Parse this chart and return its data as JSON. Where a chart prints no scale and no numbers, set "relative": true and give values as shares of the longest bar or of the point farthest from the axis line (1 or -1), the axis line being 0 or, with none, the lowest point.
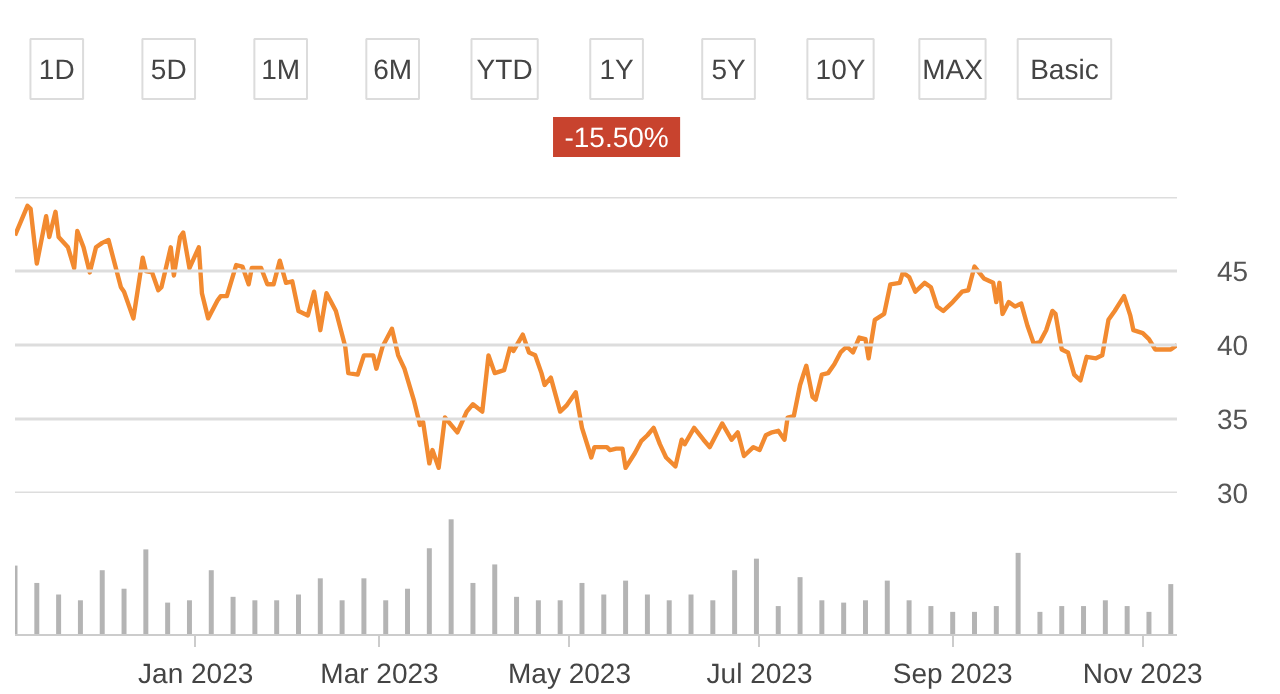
{
  "chart_data": [
    {
      "type": "line",
      "annotations": [
        "1D",
        "5D",
        "1M",
        "6M",
        "YTD",
        "1Y",
        "5Y",
        "10Y",
        "MAX",
        "Basic",
        "-15.50%"
      ],
      "xlim": [
        "2022-11-04",
        "2023-11-12"
      ],
      "ylim": [
        30,
        50
      ],
      "yticks": [
        30,
        35,
        40,
        45,
        {
          "value": 50,
          "label": null
        }
      ],
      "grid": "y",
      "tick_labels": "y",
      "line_style": "solid",
      "series": [
        {
          "color": "#f28a30",
          "x": [
            "2022-11-04",
            "2022-11-08",
            "2022-11-09",
            "2022-11-11",
            "2022-11-14",
            "2022-11-15",
            "2022-11-17",
            "2022-11-18",
            "2022-11-21",
            "2022-11-23",
            "2022-11-24",
            "2022-11-26",
            "2022-11-28",
            "2022-11-30",
            "2022-12-02",
            "2022-12-04",
            "2022-12-08",
            "2022-12-09",
            "2022-12-12",
            "2022-12-15",
            "2022-12-16",
            "2022-12-18",
            "2022-12-20",
            "2022-12-21",
            "2022-12-24",
            "2022-12-25",
            "2022-12-27",
            "2022-12-28",
            "2022-12-30",
            "2023-01-02",
            "2023-01-03",
            "2023-01-05",
            "2023-01-08",
            "2023-01-09",
            "2023-01-11",
            "2023-01-14",
            "2023-01-16",
            "2023-01-18",
            "2023-01-19",
            "2023-01-22",
            "2023-01-24",
            "2023-01-26",
            "2023-01-28",
            "2023-01-30",
            "2023-02-01",
            "2023-02-03",
            "2023-02-06",
            "2023-02-08",
            "2023-02-10",
            "2023-02-12",
            "2023-02-15",
            "2023-02-18",
            "2023-02-19",
            "2023-02-22",
            "2023-02-24",
            "2023-02-27",
            "2023-02-28",
            "2023-03-02",
            "2023-03-05",
            "2023-03-07",
            "2023-03-09",
            "2023-03-12",
            "2023-03-14",
            "2023-03-15",
            "2023-03-17",
            "2023-03-18",
            "2023-03-20",
            "2023-03-22",
            "2023-03-26",
            "2023-03-29",
            "2023-03-31",
            "2023-04-03",
            "2023-04-05",
            "2023-04-07",
            "2023-04-10",
            "2023-04-12",
            "2023-04-13",
            "2023-04-16",
            "2023-04-18",
            "2023-04-20",
            "2023-04-22",
            "2023-04-23",
            "2023-04-25",
            "2023-04-28",
            "2023-04-30",
            "2023-05-03",
            "2023-05-05",
            "2023-05-08",
            "2023-05-09",
            "2023-05-13",
            "2023-05-14",
            "2023-05-16",
            "2023-05-18",
            "2023-05-19",
            "2023-05-22",
            "2023-05-24",
            "2023-05-26",
            "2023-05-28",
            "2023-05-30",
            "2023-06-01",
            "2023-06-04",
            "2023-06-06",
            "2023-06-07",
            "2023-06-10",
            "2023-06-13",
            "2023-06-15",
            "2023-06-17",
            "2023-06-19",
            "2023-06-22",
            "2023-06-24",
            "2023-06-26",
            "2023-06-29",
            "2023-07-01",
            "2023-07-03",
            "2023-07-05",
            "2023-07-07",
            "2023-07-09",
            "2023-07-10",
            "2023-07-12",
            "2023-07-14",
            "2023-07-16",
            "2023-07-18",
            "2023-07-19",
            "2023-07-21",
            "2023-07-23",
            "2023-07-25",
            "2023-07-27",
            "2023-07-29",
            "2023-07-31",
            "2023-08-02",
            "2023-08-04",
            "2023-08-05",
            "2023-08-07",
            "2023-08-10",
            "2023-08-12",
            "2023-08-15",
            "2023-08-16",
            "2023-08-18",
            "2023-08-20",
            "2023-08-23",
            "2023-08-25",
            "2023-08-27",
            "2023-08-29",
            "2023-09-01",
            "2023-09-04",
            "2023-09-06",
            "2023-09-08",
            "2023-09-11",
            "2023-09-14",
            "2023-09-15",
            "2023-09-16",
            "2023-09-17",
            "2023-09-19",
            "2023-09-21",
            "2023-09-23",
            "2023-09-25",
            "2023-09-27",
            "2023-09-29",
            "2023-10-01",
            "2023-10-03",
            "2023-10-04",
            "2023-10-06",
            "2023-10-08",
            "2023-10-10",
            "2023-10-12",
            "2023-10-14",
            "2023-10-17",
            "2023-10-19",
            "2023-10-21",
            "2023-10-23",
            "2023-10-26",
            "2023-10-28",
            "2023-10-29",
            "2023-11-01",
            "2023-11-03",
            "2023-11-05",
            "2023-11-08",
            "2023-11-10",
            "2023-11-12"
          ],
          "values": [
            47.4,
            49.4,
            49.2,
            45.5,
            48.7,
            47.3,
            49.0,
            47.3,
            46.6,
            45.2,
            47.7,
            46.6,
            44.9,
            46.6,
            46.9,
            47.1,
            43.9,
            43.6,
            41.8,
            45.9,
            45.0,
            44.9,
            43.7,
            43.9,
            46.6,
            44.7,
            47.3,
            47.6,
            45.2,
            46.6,
            43.5,
            41.8,
            43.0,
            43.3,
            43.3,
            45.4,
            45.3,
            44.1,
            45.2,
            45.2,
            44.1,
            44.1,
            45.7,
            44.2,
            44.3,
            42.3,
            42.0,
            43.6,
            41.0,
            43.5,
            42.3,
            39.9,
            38.1,
            38.0,
            39.3,
            39.3,
            38.4,
            39.9,
            41.1,
            39.3,
            38.4,
            36.3,
            34.6,
            34.8,
            32.0,
            32.9,
            31.7,
            35.1,
            34.1,
            35.5,
            36.0,
            35.5,
            39.3,
            38.1,
            38.3,
            39.9,
            39.6,
            40.7,
            39.5,
            39.3,
            38.1,
            37.3,
            37.8,
            35.5,
            35.9,
            36.8,
            34.4,
            32.4,
            33.1,
            33.1,
            32.9,
            33.0,
            33.0,
            31.7,
            32.7,
            33.5,
            33.9,
            34.4,
            33.3,
            32.4,
            31.8,
            33.6,
            33.3,
            34.4,
            33.6,
            33.1,
            33.9,
            34.7,
            33.6,
            34.1,
            32.5,
            33.1,
            32.9,
            33.9,
            34.1,
            34.2,
            33.6,
            35.1,
            35.2,
            37.3,
            38.6,
            36.5,
            36.3,
            38.0,
            38.1,
            38.7,
            39.5,
            39.9,
            39.5,
            40.5,
            40.4,
            39.1,
            41.7,
            42.1,
            44.1,
            44.2,
            44.9,
            44.6,
            43.6,
            44.2,
            43.9,
            42.6,
            42.3,
            42.9,
            43.6,
            43.7,
            45.3,
            44.5,
            44.2,
            42.9,
            44.2,
            42.1,
            42.9,
            42.6,
            42.8,
            41.3,
            40.1,
            40.2,
            41.0,
            42.3,
            42.1,
            39.7,
            39.5,
            38.0,
            37.6,
            39.2,
            39.1,
            39.3,
            41.7,
            42.3,
            43.3,
            42.0,
            41.0,
            40.8,
            40.4,
            39.7,
            39.7,
            39.7,
            40.0
          ]
        }
      ]
    },
    {
      "type": "bar",
      "relative": true,
      "tick_labels": "x",
      "color": "#b4b4b4",
      "xlim": [
        "2022-11-04",
        "2023-11-12"
      ],
      "xticks": [
        {
          "value": "2023-01-01",
          "label": "Jan 2023"
        },
        {
          "value": "2023-03-01",
          "label": "Mar 2023"
        },
        {
          "value": "2023-05-01",
          "label": "May 2023"
        },
        {
          "value": "2023-07-01",
          "label": "Jul 2023"
        },
        {
          "value": "2023-09-01",
          "label": "Sep 2023"
        },
        {
          "value": "2023-11-01",
          "label": "Nov 2023"
        }
      ],
      "x": [
        "2022-11-04",
        "2022-11-11",
        "2022-11-18",
        "2022-11-25",
        "2022-12-02",
        "2022-12-09",
        "2022-12-16",
        "2022-12-23",
        "2022-12-30",
        "2023-01-06",
        "2023-01-13",
        "2023-01-20",
        "2023-01-27",
        "2023-02-03",
        "2023-02-10",
        "2023-02-17",
        "2023-02-24",
        "2023-03-03",
        "2023-03-10",
        "2023-03-17",
        "2023-03-24",
        "2023-03-31",
        "2023-04-07",
        "2023-04-14",
        "2023-04-21",
        "2023-04-28",
        "2023-05-05",
        "2023-05-12",
        "2023-05-19",
        "2023-05-26",
        "2023-06-02",
        "2023-06-09",
        "2023-06-16",
        "2023-06-23",
        "2023-06-30",
        "2023-07-07",
        "2023-07-14",
        "2023-07-21",
        "2023-07-28",
        "2023-08-04",
        "2023-08-11",
        "2023-08-18",
        "2023-08-25",
        "2023-09-01",
        "2023-09-08",
        "2023-09-15",
        "2023-09-22",
        "2023-09-29",
        "2023-10-06",
        "2023-10-13",
        "2023-10-20",
        "2023-10-27",
        "2023-11-03",
        "2023-11-10"
      ],
      "values": [
        0.6,
        0.45,
        0.35,
        0.3,
        0.56,
        0.4,
        0.74,
        0.28,
        0.3,
        0.56,
        0.33,
        0.3,
        0.3,
        0.35,
        0.49,
        0.3,
        0.49,
        0.3,
        0.4,
        0.75,
        1.0,
        0.45,
        0.61,
        0.33,
        0.3,
        0.3,
        0.45,
        0.35,
        0.47,
        0.35,
        0.3,
        0.35,
        0.3,
        0.56,
        0.66,
        0.25,
        0.5,
        0.3,
        0.28,
        0.3,
        0.47,
        0.3,
        0.25,
        0.2,
        0.2,
        0.25,
        0.71,
        0.2,
        0.25,
        0.25,
        0.3,
        0.25,
        0.2,
        0.44
      ]
    }
  ]
}
